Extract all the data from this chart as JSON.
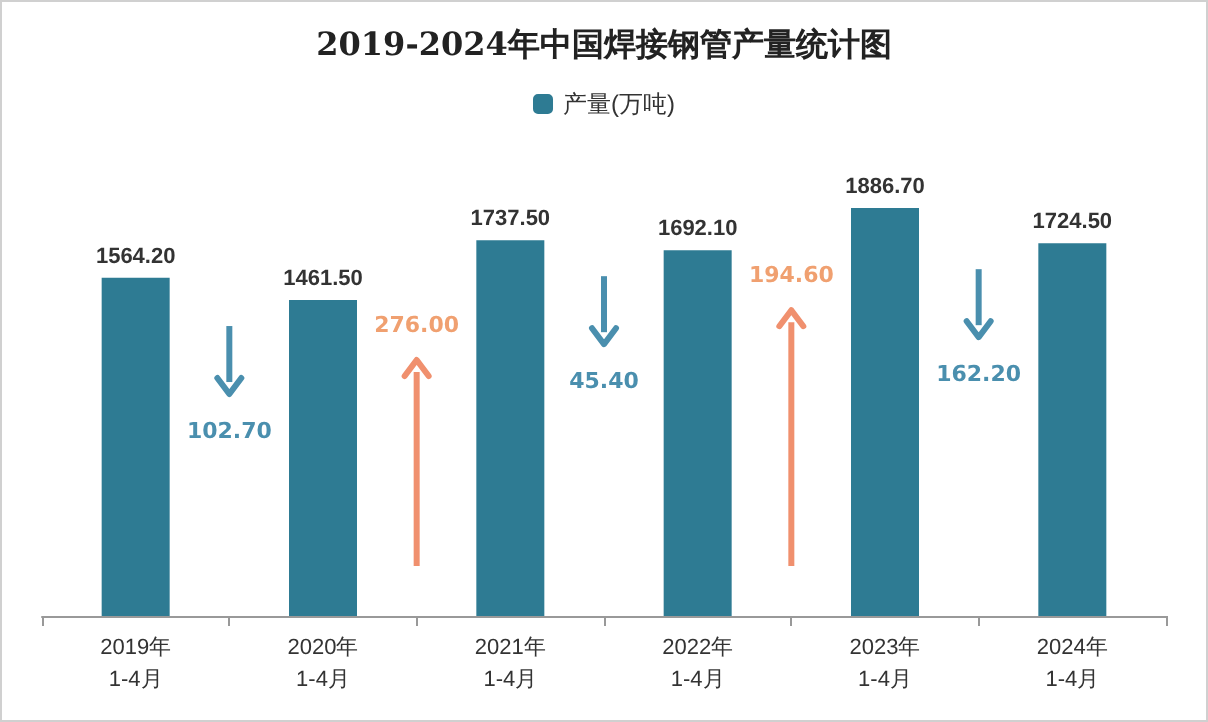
{
  "chart_data": {
    "type": "bar",
    "title": "2019-2024年中国焊接钢管产量统计图",
    "categories": [
      "2019年\n1-4月",
      "2020年\n1-4月",
      "2021年\n1-4月",
      "2022年\n1-4月",
      "2023年\n1-4月",
      "2024年\n1-4月"
    ],
    "series": [
      {
        "name": "产量(万吨)",
        "color": "#2e7b93",
        "values": [
          1564.2,
          1461.5,
          1737.5,
          1692.1,
          1886.7,
          1724.5
        ],
        "value_labels": [
          "1564.20",
          "1461.50",
          "1737.50",
          "1692.10",
          "1886.70",
          "1724.50"
        ]
      }
    ],
    "annotations": [
      "102.70",
      "276.00",
      "45.40",
      "194.60",
      "162.20"
    ],
    "legend": "top"
  }
}
